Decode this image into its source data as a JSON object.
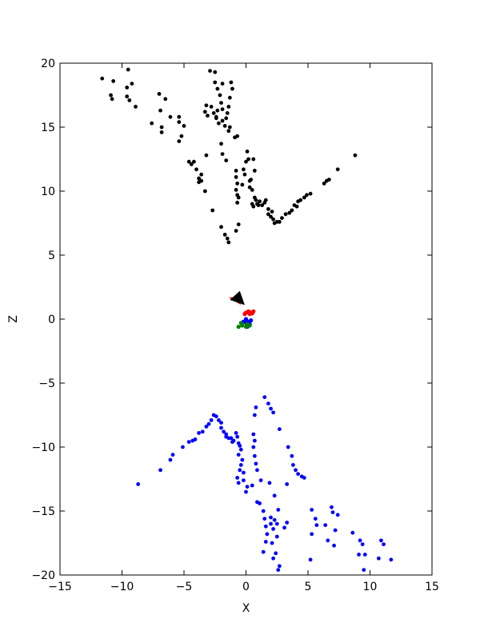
{
  "chart_data": {
    "type": "scatter",
    "title": "",
    "xlabel": "X",
    "ylabel": "Z",
    "xlim": [
      -15,
      15
    ],
    "ylim": [
      -20,
      20
    ],
    "xticks": [
      -15,
      -10,
      -5,
      0,
      5,
      10,
      15
    ],
    "yticks": [
      -20,
      -15,
      -10,
      -5,
      0,
      5,
      10,
      15,
      20
    ],
    "xtick_labels": [
      "−15",
      "−10",
      "−5",
      "0",
      "5",
      "10",
      "15"
    ],
    "ytick_labels": [
      "−20",
      "−15",
      "−10",
      "−5",
      "0",
      "5",
      "10",
      "15",
      "20"
    ],
    "grid": false,
    "series": [
      {
        "color": "#000000",
        "marker": "dot",
        "points": [
          [
            -11.6,
            18.8
          ],
          [
            -10.9,
            17.5
          ],
          [
            -10.7,
            18.6
          ],
          [
            -10.8,
            17.2
          ],
          [
            -9.5,
            19.5
          ],
          [
            -9.6,
            18.1
          ],
          [
            -9.2,
            18.4
          ],
          [
            -9.6,
            17.4
          ],
          [
            -9.4,
            17.1
          ],
          [
            -8.9,
            16.6
          ],
          [
            -7.0,
            17.6
          ],
          [
            -6.5,
            17.2
          ],
          [
            -6.9,
            16.3
          ],
          [
            -6.1,
            15.8
          ],
          [
            -7.6,
            15.3
          ],
          [
            -6.8,
            15.0
          ],
          [
            -6.8,
            14.6
          ],
          [
            -5.4,
            15.8
          ],
          [
            -5.4,
            15.4
          ],
          [
            -5.0,
            15.1
          ],
          [
            -5.2,
            14.3
          ],
          [
            -5.4,
            13.9
          ],
          [
            -4.6,
            12.3
          ],
          [
            -4.4,
            12.1
          ],
          [
            -4.2,
            12.3
          ],
          [
            -4.0,
            11.7
          ],
          [
            -3.8,
            10.7
          ],
          [
            -3.6,
            10.8
          ],
          [
            -3.8,
            11.0
          ],
          [
            -3.3,
            10.0
          ],
          [
            -3.6,
            11.3
          ],
          [
            -2.7,
            8.5
          ],
          [
            -2.0,
            7.2
          ],
          [
            -1.7,
            6.6
          ],
          [
            -1.5,
            6.3
          ],
          [
            -1.4,
            6.0
          ],
          [
            -0.8,
            6.9
          ],
          [
            -0.6,
            7.4
          ],
          [
            -3.2,
            12.8
          ],
          [
            -3.3,
            16.2
          ],
          [
            -3.2,
            16.7
          ],
          [
            -3.1,
            15.9
          ],
          [
            -2.9,
            19.4
          ],
          [
            -2.5,
            19.3
          ],
          [
            -2.5,
            18.5
          ],
          [
            -2.3,
            18.0
          ],
          [
            -2.1,
            17.5
          ],
          [
            -2.0,
            16.9
          ],
          [
            -1.9,
            16.4
          ],
          [
            -2.6,
            16.1
          ],
          [
            -2.3,
            16.3
          ],
          [
            -2.4,
            15.7
          ],
          [
            -2.2,
            15.3
          ],
          [
            -1.9,
            15.5
          ],
          [
            -1.7,
            15.1
          ],
          [
            -1.6,
            15.7
          ],
          [
            -1.4,
            16.6
          ],
          [
            -1.5,
            16.1
          ],
          [
            -1.2,
            18.5
          ],
          [
            -1.1,
            18.0
          ],
          [
            -1.3,
            17.3
          ],
          [
            -2.0,
            13.7
          ],
          [
            -1.9,
            12.9
          ],
          [
            -1.6,
            12.4
          ],
          [
            -0.9,
            14.2
          ],
          [
            -0.7,
            14.3
          ],
          [
            -1.3,
            15.0
          ],
          [
            -1.4,
            14.7
          ],
          [
            -0.8,
            11.6
          ],
          [
            -0.8,
            11.1
          ],
          [
            -0.7,
            10.6
          ],
          [
            -0.8,
            10.1
          ],
          [
            -0.7,
            9.7
          ],
          [
            -0.7,
            9.1
          ],
          [
            -0.6,
            9.5
          ],
          [
            -0.2,
            11.7
          ],
          [
            -0.1,
            11.3
          ],
          [
            0.0,
            12.3
          ],
          [
            0.1,
            13.1
          ],
          [
            0.2,
            12.5
          ],
          [
            0.3,
            10.8
          ],
          [
            0.3,
            10.3
          ],
          [
            0.5,
            10.1
          ],
          [
            0.7,
            11.6
          ],
          [
            0.6,
            12.5
          ],
          [
            0.7,
            9.5
          ],
          [
            0.5,
            9.0
          ],
          [
            0.6,
            8.8
          ],
          [
            0.8,
            9.3
          ],
          [
            0.9,
            9.0
          ],
          [
            1.1,
            9.2
          ],
          [
            1.3,
            8.9
          ],
          [
            1.5,
            9.1
          ],
          [
            1.6,
            9.3
          ],
          [
            1.8,
            8.6
          ],
          [
            1.8,
            8.2
          ],
          [
            2.1,
            8.4
          ],
          [
            2.0,
            8.0
          ],
          [
            2.2,
            7.8
          ],
          [
            2.3,
            7.5
          ],
          [
            2.5,
            7.6
          ],
          [
            2.7,
            7.6
          ],
          [
            2.9,
            7.9
          ],
          [
            3.2,
            8.2
          ],
          [
            3.5,
            8.3
          ],
          [
            3.7,
            8.5
          ],
          [
            3.9,
            8.9
          ],
          [
            4.1,
            8.8
          ],
          [
            4.2,
            9.2
          ],
          [
            4.4,
            9.3
          ],
          [
            4.7,
            9.5
          ],
          [
            4.9,
            9.7
          ],
          [
            5.2,
            9.8
          ],
          [
            6.3,
            10.6
          ],
          [
            6.5,
            10.8
          ],
          [
            6.7,
            10.9
          ],
          [
            7.4,
            11.7
          ],
          [
            8.8,
            12.8
          ],
          [
            -2.4,
            15.8
          ],
          [
            -2.8,
            16.6
          ],
          [
            -1.9,
            18.4
          ],
          [
            -0.3,
            10.5
          ],
          [
            0.4,
            10.9
          ],
          [
            1.0,
            8.9
          ]
        ]
      },
      {
        "color": "#0000ff",
        "marker": "dot",
        "points": [
          [
            -8.7,
            -12.9
          ],
          [
            -6.9,
            -11.8
          ],
          [
            -6.1,
            -11.0
          ],
          [
            -5.9,
            -10.6
          ],
          [
            -5.1,
            -10.0
          ],
          [
            -4.6,
            -9.6
          ],
          [
            -4.3,
            -9.5
          ],
          [
            -4.1,
            -9.4
          ],
          [
            -3.8,
            -8.9
          ],
          [
            -3.5,
            -8.8
          ],
          [
            -3.2,
            -8.4
          ],
          [
            -3.0,
            -8.2
          ],
          [
            -2.8,
            -7.9
          ],
          [
            -2.6,
            -7.5
          ],
          [
            -2.4,
            -7.6
          ],
          [
            -2.2,
            -7.9
          ],
          [
            -2.0,
            -8.1
          ],
          [
            -2.0,
            -8.5
          ],
          [
            -1.8,
            -8.8
          ],
          [
            -1.6,
            -9.0
          ],
          [
            -1.4,
            -9.3
          ],
          [
            -1.2,
            -9.3
          ],
          [
            -1.0,
            -9.5
          ],
          [
            -0.8,
            -8.9
          ],
          [
            -0.7,
            -9.2
          ],
          [
            -0.6,
            -9.7
          ],
          [
            -0.5,
            -9.9
          ],
          [
            -0.4,
            -10.2
          ],
          [
            -0.6,
            -10.6
          ],
          [
            -0.3,
            -11.0
          ],
          [
            -0.4,
            -11.4
          ],
          [
            -0.5,
            -11.8
          ],
          [
            -0.2,
            -12.0
          ],
          [
            -0.7,
            -12.4
          ],
          [
            -0.6,
            -12.8
          ],
          [
            -0.2,
            -12.6
          ],
          [
            0.1,
            -13.1
          ],
          [
            0.0,
            -13.5
          ],
          [
            0.6,
            -9.0
          ],
          [
            0.7,
            -9.5
          ],
          [
            0.6,
            -10.0
          ],
          [
            0.7,
            -10.7
          ],
          [
            0.8,
            -11.3
          ],
          [
            0.9,
            -11.8
          ],
          [
            1.2,
            -12.6
          ],
          [
            0.9,
            -14.3
          ],
          [
            1.1,
            -14.4
          ],
          [
            1.4,
            -15.0
          ],
          [
            1.5,
            -15.6
          ],
          [
            1.6,
            -16.2
          ],
          [
            1.7,
            -16.8
          ],
          [
            1.6,
            -17.4
          ],
          [
            1.4,
            -18.2
          ],
          [
            1.5,
            -6.1
          ],
          [
            1.8,
            -6.6
          ],
          [
            2.0,
            -7.0
          ],
          [
            2.2,
            -7.3
          ],
          [
            0.8,
            -6.9
          ],
          [
            0.7,
            -7.5
          ],
          [
            1.9,
            -12.8
          ],
          [
            2.3,
            -13.8
          ],
          [
            2.6,
            -14.9
          ],
          [
            2.0,
            -15.5
          ],
          [
            2.3,
            -15.7
          ],
          [
            2.5,
            -16.0
          ],
          [
            2.2,
            -16.4
          ],
          [
            2.5,
            -17.0
          ],
          [
            2.1,
            -17.5
          ],
          [
            2.4,
            -18.3
          ],
          [
            2.2,
            -18.7
          ],
          [
            2.7,
            -19.3
          ],
          [
            2.6,
            -19.6
          ],
          [
            3.3,
            -15.9
          ],
          [
            3.1,
            -16.3
          ],
          [
            2.7,
            -8.6
          ],
          [
            3.4,
            -10.0
          ],
          [
            3.7,
            -10.7
          ],
          [
            3.8,
            -11.4
          ],
          [
            4.0,
            -11.8
          ],
          [
            4.2,
            -12.1
          ],
          [
            4.5,
            -12.3
          ],
          [
            4.7,
            -12.4
          ],
          [
            3.3,
            -12.9
          ],
          [
            5.3,
            -14.9
          ],
          [
            5.6,
            -15.6
          ],
          [
            5.7,
            -16.1
          ],
          [
            5.3,
            -16.8
          ],
          [
            5.2,
            -18.8
          ],
          [
            6.4,
            -16.1
          ],
          [
            6.6,
            -17.3
          ],
          [
            6.9,
            -14.7
          ],
          [
            7.0,
            -15.1
          ],
          [
            7.2,
            -16.5
          ],
          [
            7.4,
            -15.3
          ],
          [
            7.1,
            -17.7
          ],
          [
            8.6,
            -16.7
          ],
          [
            9.2,
            -17.3
          ],
          [
            9.4,
            -17.6
          ],
          [
            9.1,
            -18.4
          ],
          [
            9.6,
            -18.4
          ],
          [
            9.5,
            -19.6
          ],
          [
            10.9,
            -17.3
          ],
          [
            11.1,
            -17.6
          ],
          [
            10.7,
            -18.7
          ],
          [
            11.7,
            -18.8
          ],
          [
            -1.6,
            -9.2
          ],
          [
            -1.1,
            -9.6
          ],
          [
            0.5,
            -13.0
          ],
          [
            2.0,
            -16.0
          ]
        ]
      }
    ],
    "camera_points": [
      {
        "color": "#ff0000",
        "points": [
          [
            0.0,
            0.5
          ],
          [
            0.2,
            0.6
          ],
          [
            0.4,
            0.5
          ],
          [
            0.6,
            0.6
          ],
          [
            0.3,
            0.4
          ],
          [
            0.5,
            0.45
          ],
          [
            -0.1,
            0.4
          ]
        ]
      },
      {
        "color": "#0000ff",
        "points": [
          [
            -0.2,
            -0.2
          ],
          [
            0.0,
            -0.3
          ],
          [
            0.2,
            -0.2
          ],
          [
            0.3,
            -0.4
          ],
          [
            0.1,
            -0.6
          ],
          [
            0.4,
            -0.1
          ],
          [
            0.0,
            0.0
          ]
        ]
      },
      {
        "color": "#008000",
        "points": [
          [
            -0.6,
            -0.6
          ],
          [
            -0.3,
            -0.5
          ],
          [
            0.0,
            -0.6
          ],
          [
            0.3,
            -0.5
          ],
          [
            -0.4,
            -0.3
          ],
          [
            0.1,
            -0.4
          ]
        ]
      }
    ],
    "camera_arrow": {
      "color": "#000000",
      "tip": [
        -1.3,
        1.5
      ],
      "base": [
        [
          -0.5,
          2.2
        ],
        [
          -0.1,
          1.1
        ]
      ]
    },
    "camera_arrow_shadow": {
      "color": "#ff0000",
      "tip": [
        -1.4,
        1.7
      ],
      "base": [
        [
          -0.7,
          1.7
        ],
        [
          -0.4,
          1.1
        ]
      ]
    }
  }
}
